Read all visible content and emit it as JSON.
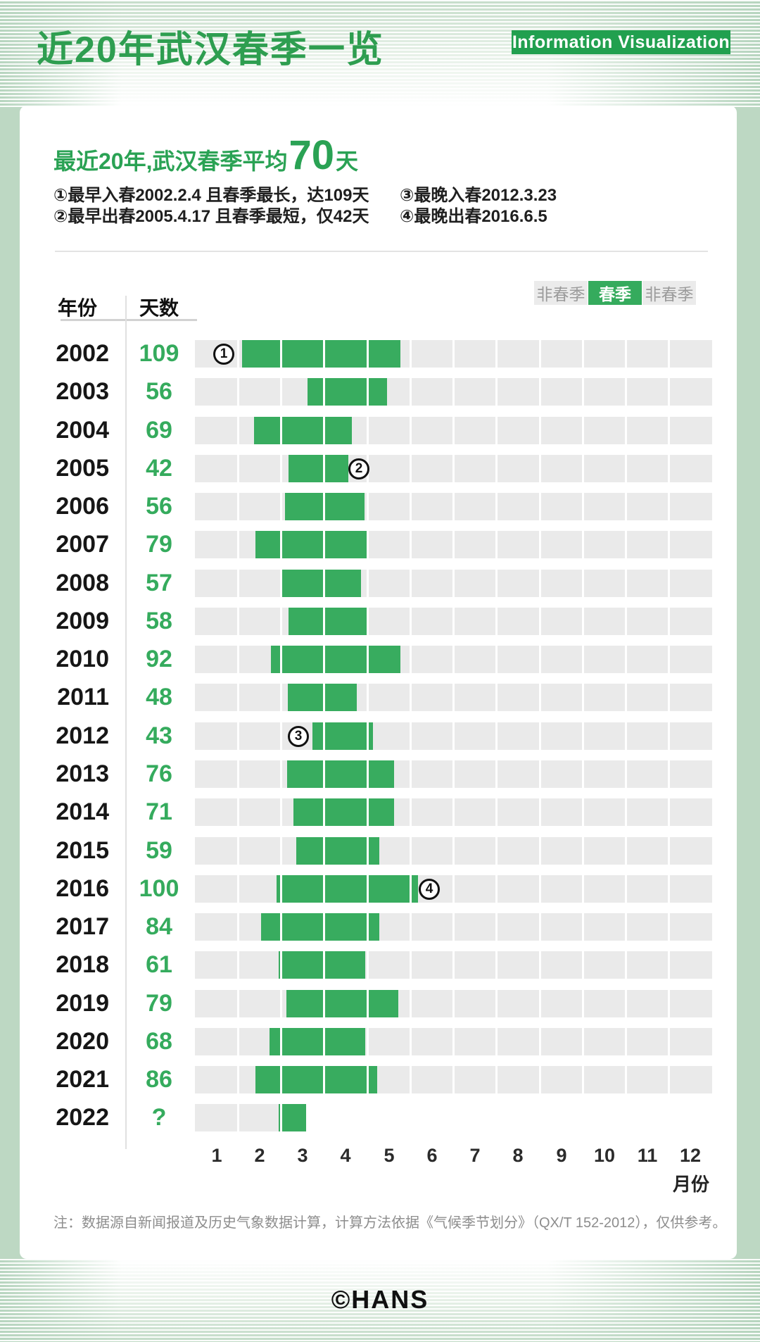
{
  "page": {
    "title": "近20年武汉春季一览",
    "badge": "Information Visualization",
    "summary": {
      "prefix": "最近20年,武汉春季平均",
      "big": "70",
      "suffix": "天"
    },
    "annotations": [
      "①最早入春2002.2.4 且春季最长，达109天",
      "②最早出春2005.4.17 且春季最短，仅42天",
      "③最晚入春2012.3.23",
      "④最晚出春2016.6.5"
    ],
    "note": "注：数据源自新闻报道及历史气象数据计算，计算方法依据《气候季节划分》（QX/T 152-2012），仅供参考。",
    "footer_logo": "©HANS"
  },
  "legend": {
    "items": [
      {
        "label": "非春季",
        "active": false
      },
      {
        "label": "春季",
        "active": true
      },
      {
        "label": "非春季",
        "active": false
      }
    ]
  },
  "table": {
    "col_year": "年份",
    "col_days": "天数"
  },
  "axis": {
    "months": [
      "1",
      "2",
      "3",
      "4",
      "5",
      "6",
      "7",
      "8",
      "9",
      "10",
      "11",
      "12"
    ],
    "label": "月份"
  },
  "colors": {
    "title_green": "#2E9E50",
    "badge_green": "#21A04F",
    "bar_green": "#38AC5F",
    "text_green": "#35AB5D",
    "track_gray": "#eaeaea",
    "legend_gray_text": "#9b9b9b",
    "note_gray": "#8d8d8d"
  },
  "chart_data": {
    "type": "bar",
    "orientation": "horizontal-gantt",
    "title": "近20年武汉春季一览",
    "average_days": 70,
    "x_axis": {
      "unit": "month",
      "min": 0,
      "max": 12,
      "ticks": [
        1,
        2,
        3,
        4,
        5,
        6,
        7,
        8,
        9,
        10,
        11,
        12
      ],
      "label": "月份"
    },
    "legend": [
      "非春季",
      "春季",
      "非春季"
    ],
    "rows": [
      {
        "year": "2002",
        "days": "109",
        "start": 1.1,
        "end": 4.77,
        "marker": {
          "num": "1",
          "pos": 0.67
        }
      },
      {
        "year": "2003",
        "days": "56",
        "start": 2.62,
        "end": 4.46
      },
      {
        "year": "2004",
        "days": "69",
        "start": 1.37,
        "end": 3.64
      },
      {
        "year": "2005",
        "days": "42",
        "start": 2.17,
        "end": 3.56,
        "marker": {
          "num": "2",
          "pos": 3.8
        }
      },
      {
        "year": "2006",
        "days": "56",
        "start": 2.09,
        "end": 3.93
      },
      {
        "year": "2007",
        "days": "79",
        "start": 1.4,
        "end": 4.0
      },
      {
        "year": "2008",
        "days": "57",
        "start": 1.98,
        "end": 3.85
      },
      {
        "year": "2009",
        "days": "58",
        "start": 2.17,
        "end": 4.03
      },
      {
        "year": "2010",
        "days": "92",
        "start": 1.76,
        "end": 4.76
      },
      {
        "year": "2011",
        "days": "48",
        "start": 2.16,
        "end": 3.76
      },
      {
        "year": "2012",
        "days": "43",
        "start": 2.73,
        "end": 4.14,
        "marker": {
          "num": "3",
          "pos": 2.4
        }
      },
      {
        "year": "2013",
        "days": "76",
        "start": 2.14,
        "end": 4.62
      },
      {
        "year": "2014",
        "days": "71",
        "start": 2.29,
        "end": 4.62
      },
      {
        "year": "2015",
        "days": "59",
        "start": 2.35,
        "end": 4.28
      },
      {
        "year": "2016",
        "days": "100",
        "start": 1.89,
        "end": 5.17,
        "marker": {
          "num": "4",
          "pos": 5.44
        }
      },
      {
        "year": "2017",
        "days": "84",
        "start": 1.53,
        "end": 4.28
      },
      {
        "year": "2018",
        "days": "61",
        "start": 1.94,
        "end": 3.94
      },
      {
        "year": "2019",
        "days": "79",
        "start": 2.12,
        "end": 4.72
      },
      {
        "year": "2020",
        "days": "68",
        "start": 1.73,
        "end": 3.95
      },
      {
        "year": "2021",
        "days": "86",
        "start": 1.4,
        "end": 4.23
      },
      {
        "year": "2022",
        "days": "?",
        "start": 1.94,
        "end": 2.58,
        "truncated": true
      }
    ]
  }
}
